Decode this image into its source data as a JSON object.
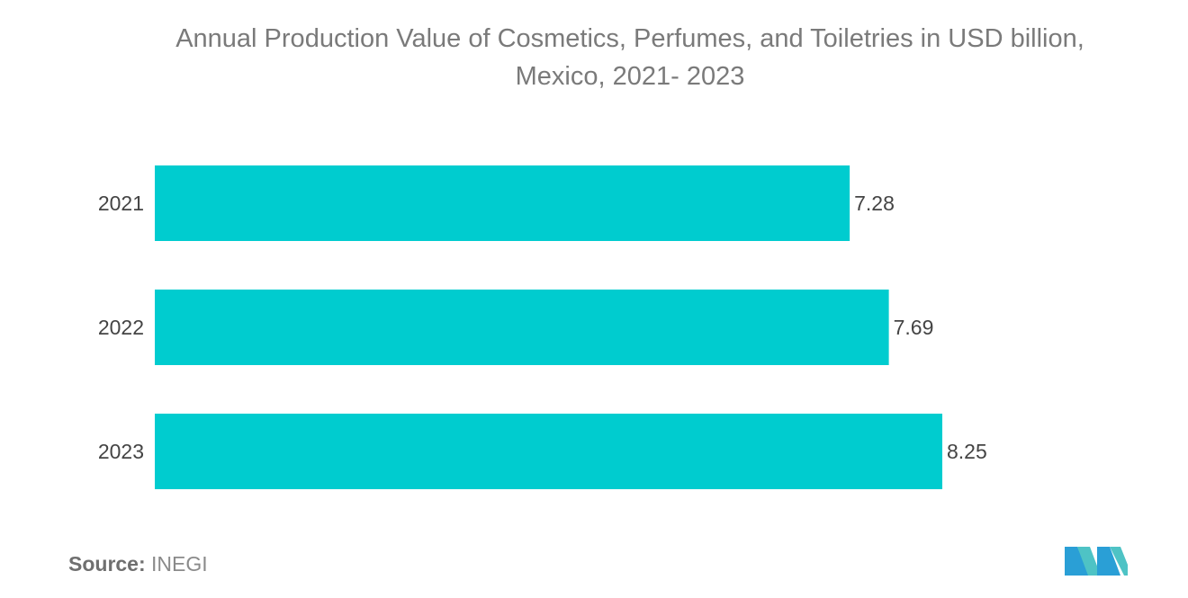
{
  "title_line1": "Annual Production Value of Cosmetics, Perfumes, and Toiletries in USD billion,",
  "title_line2": "Mexico, 2021- 2023",
  "source_label": "Source:",
  "source_value": "INEGI",
  "colors": {
    "bar": "#00cccf",
    "text": "#7a7a7a",
    "label": "#444444"
  },
  "chart_data": {
    "type": "bar",
    "orientation": "horizontal",
    "categories": [
      "2021",
      "2022",
      "2023"
    ],
    "values": [
      7.28,
      7.69,
      8.25
    ],
    "data_labels": [
      "7.28",
      "7.69",
      "8.25"
    ],
    "title": "Annual Production Value of Cosmetics, Perfumes, and Toiletries in USD billion, Mexico, 2021- 2023",
    "xlabel": "",
    "ylabel": "",
    "xlim": [
      0,
      8.25
    ],
    "grid": false,
    "legend": "none"
  }
}
